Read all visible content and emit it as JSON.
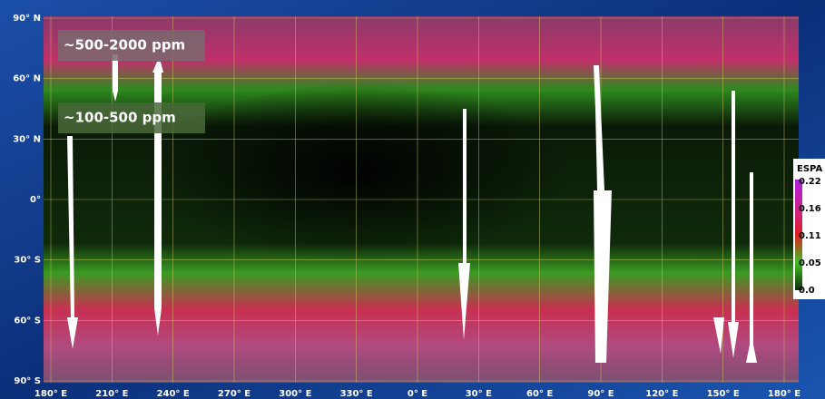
{
  "map": {
    "lat_labels": [
      "90° N",
      "60° N",
      "30° N",
      "0°",
      "30° S",
      "60° S",
      "90° S"
    ],
    "lon_labels": [
      "180° E",
      "210° E",
      "240° E",
      "270° E",
      "300° E",
      "330° E",
      "0° E",
      "30° E",
      "60° E",
      "90° E",
      "120° E",
      "150° E",
      "180° E"
    ],
    "annotations": [
      "~500-2000 ppm",
      "~100-500 ppm"
    ],
    "legend": {
      "title": "ESPA",
      "ticks": [
        "0.22",
        "0.16",
        "0.11",
        "0.05",
        "0.0"
      ]
    }
  }
}
